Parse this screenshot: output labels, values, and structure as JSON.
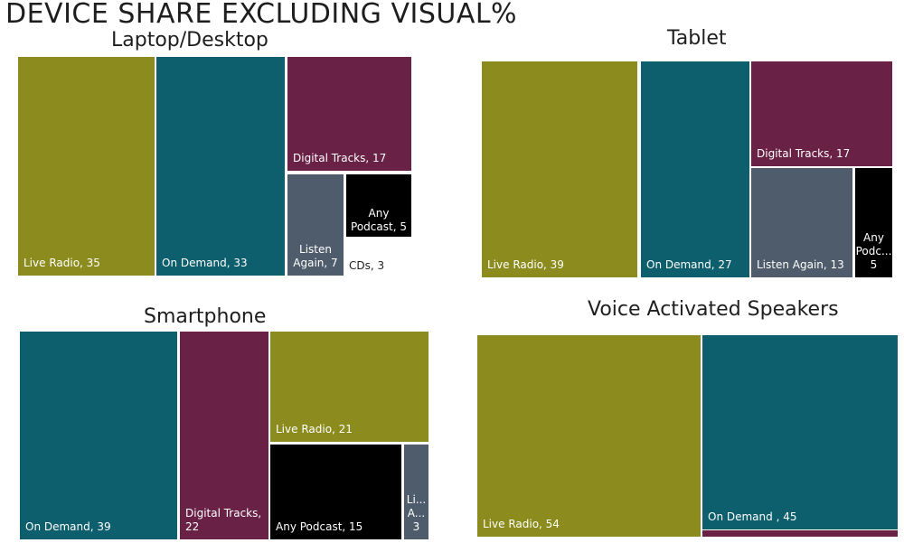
{
  "title": "DEVICE SHARE EXCLUDING VISUAL%",
  "colors": {
    "Live Radio": "#8C8C1E",
    "On Demand": "#0E5F6E",
    "Digital Tracks": "#6A2146",
    "Listen Again": "#4F5C6B",
    "Any Podcast": "#000000",
    "CDs": "#FFFFFF"
  },
  "chart_data": [
    {
      "type": "treemap",
      "title": "Laptop/Desktop",
      "items": [
        {
          "label": "Live Radio, 35",
          "category": "Live Radio",
          "value": 35
        },
        {
          "label": "On Demand, 33",
          "category": "On Demand",
          "value": 33
        },
        {
          "label": "Digital Tracks, 17",
          "category": "Digital Tracks",
          "value": 17
        },
        {
          "label": "Listen Again, 7",
          "category": "Listen Again",
          "value": 7
        },
        {
          "label": "Any Podcast, 5",
          "category": "Any Podcast",
          "value": 5
        },
        {
          "label": "CDs, 3",
          "category": "CDs",
          "value": 3
        }
      ]
    },
    {
      "type": "treemap",
      "title": "Tablet",
      "items": [
        {
          "label": "Live Radio, 39",
          "category": "Live Radio",
          "value": 39
        },
        {
          "label": "On Demand, 27",
          "category": "On Demand",
          "value": 27
        },
        {
          "label": "Digital Tracks, 17",
          "category": "Digital Tracks",
          "value": 17
        },
        {
          "label": "Listen Again, 13",
          "category": "Listen Again",
          "value": 13
        },
        {
          "label": "Any Podc... 5",
          "category": "Any Podcast",
          "value": 5
        }
      ]
    },
    {
      "type": "treemap",
      "title": "Smartphone",
      "items": [
        {
          "label": "On Demand, 39",
          "category": "On Demand",
          "value": 39
        },
        {
          "label": "Digital Tracks, 22",
          "category": "Digital Tracks",
          "value": 22
        },
        {
          "label": "Live Radio, 21",
          "category": "Live Radio",
          "value": 21
        },
        {
          "label": "Any Podcast, 15",
          "category": "Any Podcast",
          "value": 15
        },
        {
          "label": "Li... A... 3",
          "category": "Listen Again",
          "value": 3
        }
      ]
    },
    {
      "type": "treemap",
      "title": "Voice Activated Speakers",
      "items": [
        {
          "label": "Live Radio, 54",
          "category": "Live Radio",
          "value": 54
        },
        {
          "label": "On Demand , 45",
          "category": "On Demand",
          "value": 45
        },
        {
          "label": "",
          "category": "Digital Tracks",
          "value": 1
        }
      ]
    }
  ]
}
